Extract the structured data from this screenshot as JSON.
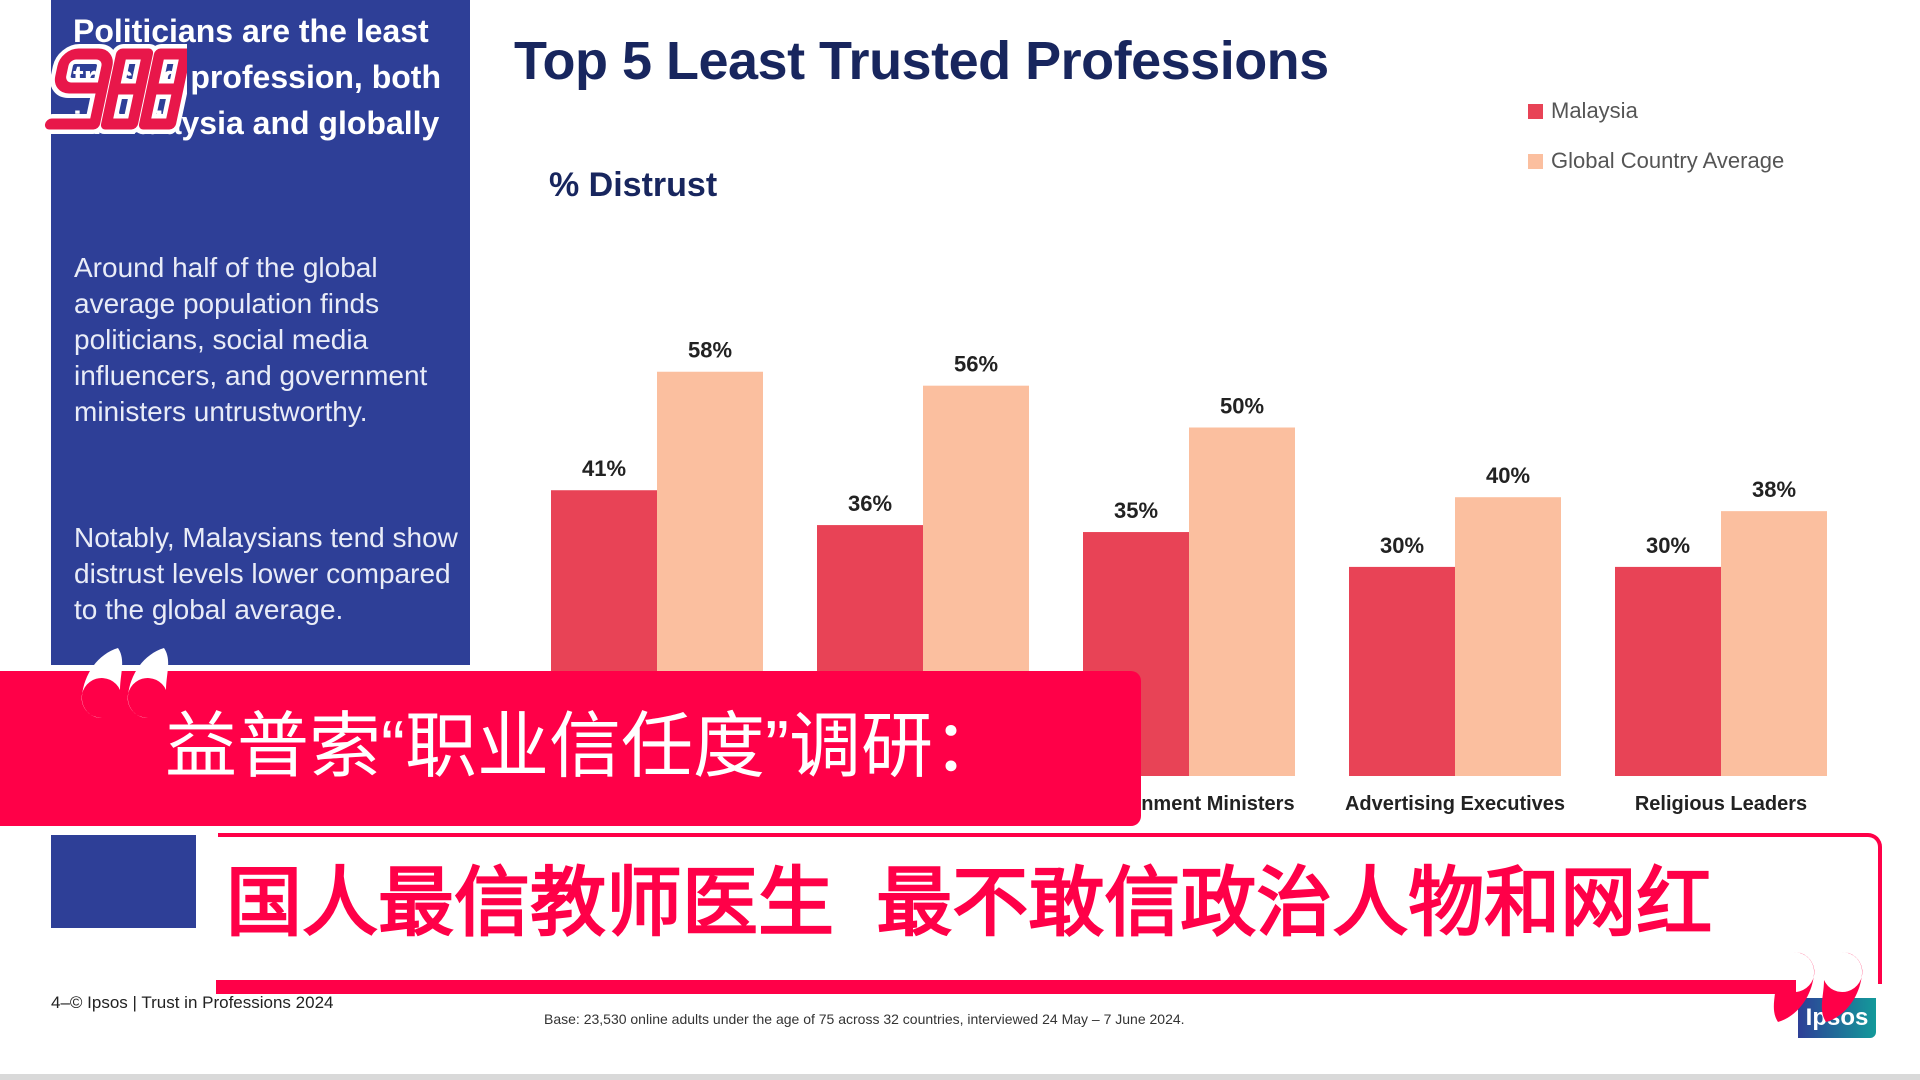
{
  "side_panel": {
    "heading": "Politicians are the least trusted profession, both in Malaysia and globally",
    "paragraph1": "Around half of the global average population finds politicians, social media influencers, and government ministers untrustworthy.",
    "paragraph2": "Notably, Malaysians tend show distrust levels lower compared to the global average."
  },
  "logo_988": "988",
  "chart_data": {
    "type": "bar",
    "title": "Top 5 Least Trusted Professions",
    "ylabel": "% Distrust",
    "categories": [
      "",
      "",
      "Government Ministers",
      "Advertising Executives",
      "Religious Leaders"
    ],
    "series": [
      {
        "name": "Malaysia",
        "color": "#e84356",
        "values": [
          41,
          36,
          35,
          30,
          30
        ],
        "labels": [
          "41%",
          "36%",
          "35%",
          "30%",
          "30%"
        ]
      },
      {
        "name": "Global Country Average",
        "color": "#fbbf9f",
        "values": [
          58,
          56,
          50,
          40,
          38
        ],
        "labels": [
          "58%",
          "56%",
          "50%",
          "40%",
          "38%"
        ]
      }
    ],
    "ylim": [
      0,
      60
    ],
    "grid": false,
    "legend": "top-right"
  },
  "banner": {
    "headline": "益普索“职业信任度”调研：",
    "subheadline": "国人最信教师医生  最不敢信政治人物和网红",
    "accent": "#ff0048"
  },
  "footer": {
    "left": "4–© Ipsos | Trust in Professions 2024",
    "base": "Base: 23,530 online adults under the age of 75 across 32 countries, interviewed 24 May – 7 June 2024.",
    "logo": "Ipsos"
  }
}
